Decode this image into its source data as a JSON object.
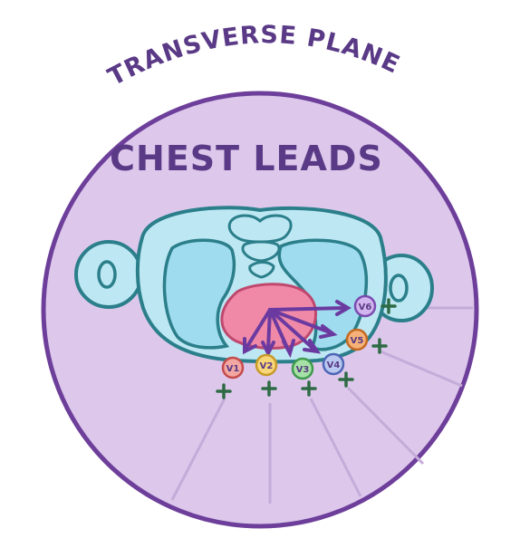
{
  "diagram": {
    "plane_title": "TRANSVERSE PLANE",
    "heading": "CHEST LEADS",
    "colors": {
      "outer_circle_fill": "#ddc8ec",
      "outer_circle_stroke": "#6d3f9a",
      "title_color": "#5a3a86",
      "body_fill": "#bde7f3",
      "body_stroke": "#2b7f8a",
      "lung_fill": "#9fdcef",
      "heart_fill": "#f089a8",
      "heart_stroke": "#c0486e",
      "arrow_color": "#6b3aa0",
      "plus_color": "#2e6b44",
      "ray_color": "#c4acd9"
    },
    "leads": [
      {
        "id": "V1",
        "label": "V1",
        "color": "#f2a7a2",
        "border": "#c54b4b"
      },
      {
        "id": "V2",
        "label": "V2",
        "color": "#f7d778",
        "border": "#c79a2a"
      },
      {
        "id": "V3",
        "label": "V3",
        "color": "#a6e1a6",
        "border": "#3f9a4d"
      },
      {
        "id": "V4",
        "label": "V4",
        "color": "#b9c8f0",
        "border": "#4d66b5"
      },
      {
        "id": "V5",
        "label": "V5",
        "color": "#f6b178",
        "border": "#c36a22"
      },
      {
        "id": "V6",
        "label": "V6",
        "color": "#d2b5ee",
        "border": "#7b4cb0"
      }
    ],
    "icons": {
      "plus": "positive-pole-plus-icon",
      "arm": "arm-cross-section-icon"
    }
  }
}
